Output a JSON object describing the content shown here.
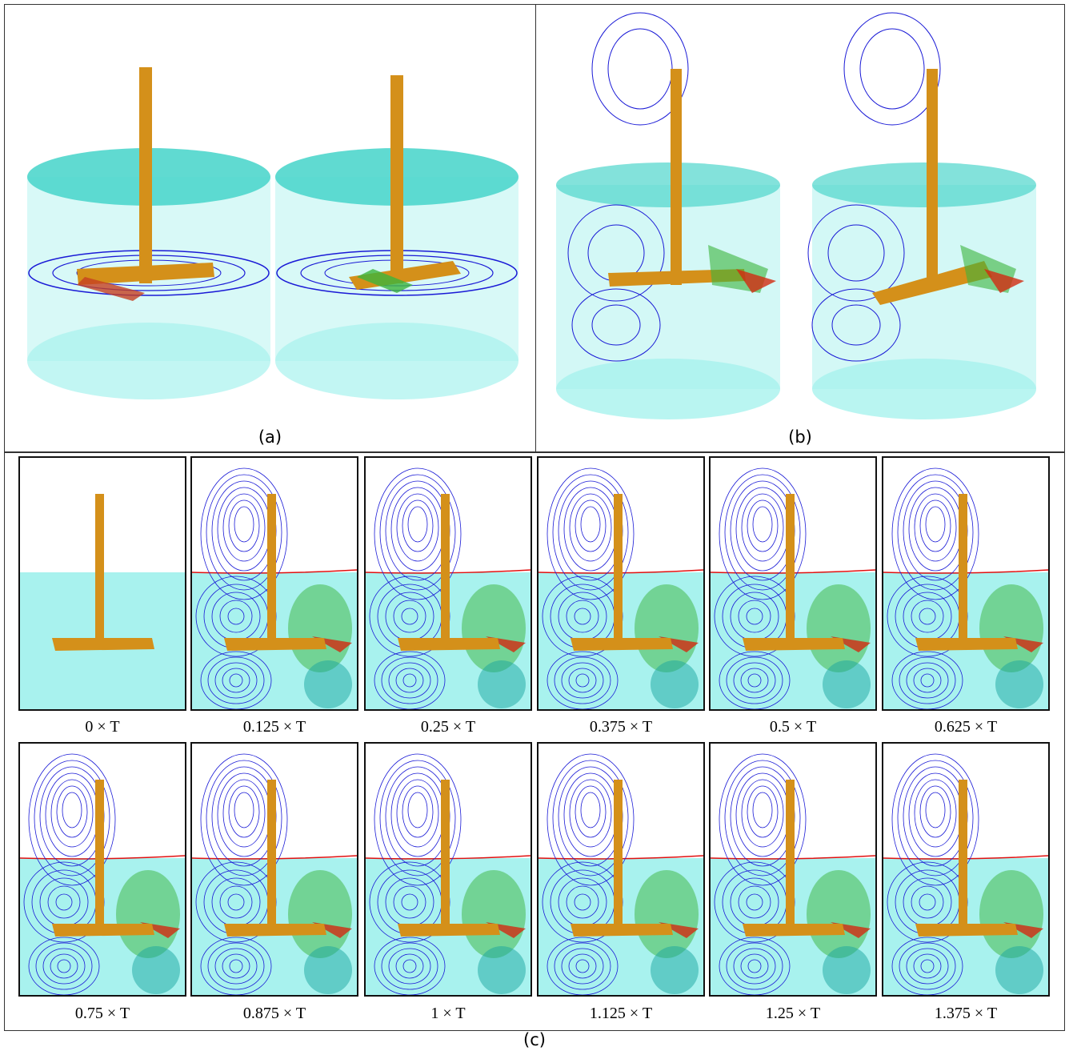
{
  "panels": {
    "a": "(a)",
    "b": "(b)",
    "c": "(c)"
  },
  "frames": [
    "0 × T",
    "0.125 × T",
    "0.25 × T",
    "0.375 × T",
    "0.5 × T",
    "0.625 × T",
    "0.75 × T",
    "0.875 × T",
    "1 × T",
    "1.125 × T",
    "1.25 × T",
    "1.375 × T"
  ],
  "colors": {
    "liquid": "#a8f2ee",
    "liquid_top": "#4fd6cc",
    "shaft": "#d4901a",
    "streamline": "#1a1ad6",
    "free_surface": "#e01010",
    "vector_low": "#1aa5a0",
    "vector_mid": "#3cb43c",
    "vector_high": "#d22a10"
  }
}
